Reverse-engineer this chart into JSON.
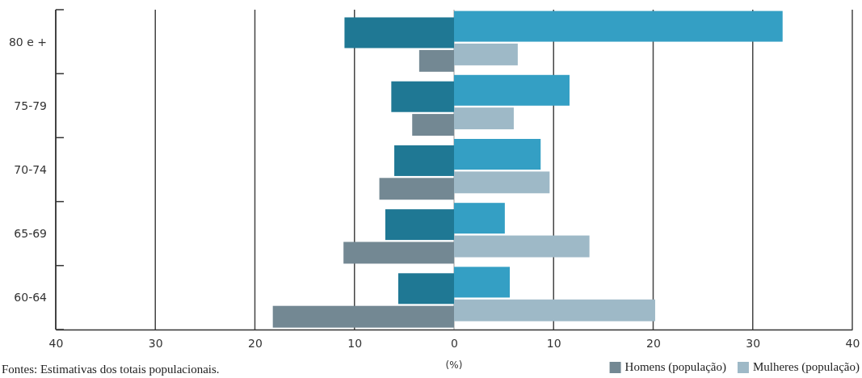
{
  "chart_data": {
    "type": "bar",
    "orientation": "horizontal",
    "categories": [
      "80 e +",
      "75-79",
      "70-74",
      "65-69",
      "60-64"
    ],
    "series": [
      {
        "color": "#1f7894",
        "values": [
          -11.0,
          -6.3,
          -6.0,
          -6.9,
          -5.6
        ]
      },
      {
        "color": "#349fc4",
        "values": [
          33.0,
          11.6,
          8.7,
          5.1,
          5.6
        ]
      },
      {
        "name": "Homens (população)",
        "color": "#738893",
        "values": [
          -3.5,
          -4.2,
          -7.5,
          -11.1,
          -18.2
        ]
      },
      {
        "name": "Mulheres (população)",
        "color": "#9eb9c7",
        "values": [
          6.4,
          6.0,
          9.6,
          13.6,
          20.2
        ]
      }
    ],
    "xlim": [
      -40,
      40
    ],
    "xticks": [
      {
        "value": -40,
        "label": "40"
      },
      {
        "value": -30,
        "label": "30"
      },
      {
        "value": -20,
        "label": "20"
      },
      {
        "value": -10,
        "label": "10"
      },
      0,
      10,
      20,
      30,
      40
    ],
    "xlabel": "(%)",
    "grid": "x",
    "legend": "bottom right",
    "annotations": [
      "Fontes: Estimativas dos totais populacionais."
    ]
  }
}
